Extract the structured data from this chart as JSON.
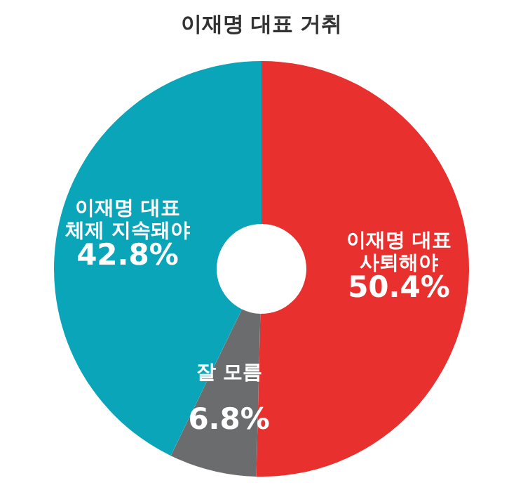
{
  "chart_data": {
    "type": "donut",
    "title": "이재명 대표 거취",
    "categories": [
      "이재명 대표\n사퇴해야",
      "잘 모름",
      "이재명 대표\n체제 지속돼야"
    ],
    "values": [
      50.4,
      6.8,
      42.8
    ],
    "colors": [
      "#e8302e",
      "#6b6c6e",
      "#0aa5b8"
    ],
    "value_labels": [
      "50.4%",
      "6.8%",
      "42.8%"
    ],
    "legend": false
  }
}
